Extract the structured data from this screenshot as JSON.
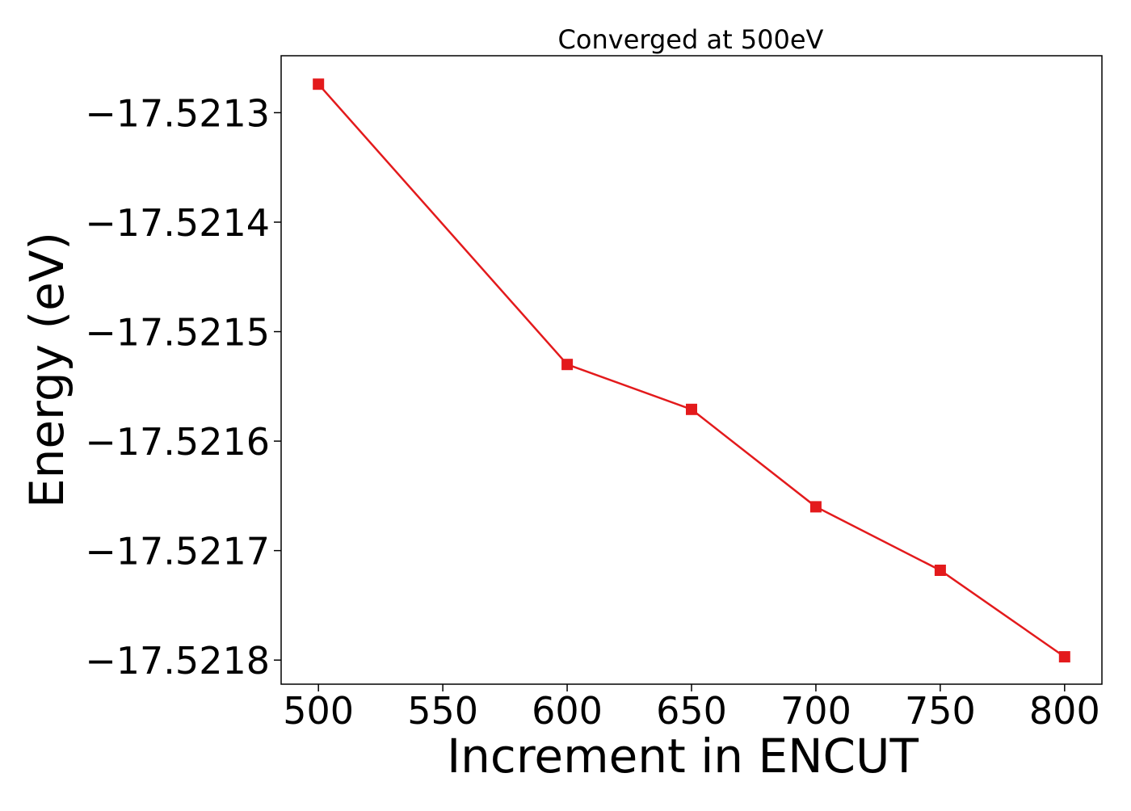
{
  "chart_data": {
    "type": "line",
    "title": "Converged at 500eV",
    "xlabel": "Increment in ENCUT",
    "ylabel": "Energy (eV)",
    "x": [
      500,
      600,
      650,
      700,
      750,
      800
    ],
    "series": [
      {
        "values": [
          -17.521274,
          -17.52153,
          -17.521571,
          -17.52166,
          -17.521718,
          -17.521797
        ],
        "color": "#e31a1c",
        "marker": "square"
      }
    ],
    "xlim": [
      485,
      815
    ],
    "ylim": [
      -17.521822,
      -17.521248
    ],
    "xticks": [
      500,
      550,
      600,
      650,
      700,
      750,
      800
    ],
    "xtick_labels": [
      "500",
      "550",
      "600",
      "650",
      "700",
      "750",
      "800"
    ],
    "yticks": [
      -17.5213,
      -17.5214,
      -17.5215,
      -17.5216,
      -17.5217,
      -17.5218
    ],
    "ytick_labels": [
      "−17.5213",
      "−17.5214",
      "−17.5215",
      "−17.5216",
      "−17.5217",
      "−17.5218"
    ],
    "grid": false,
    "legend": false
  }
}
